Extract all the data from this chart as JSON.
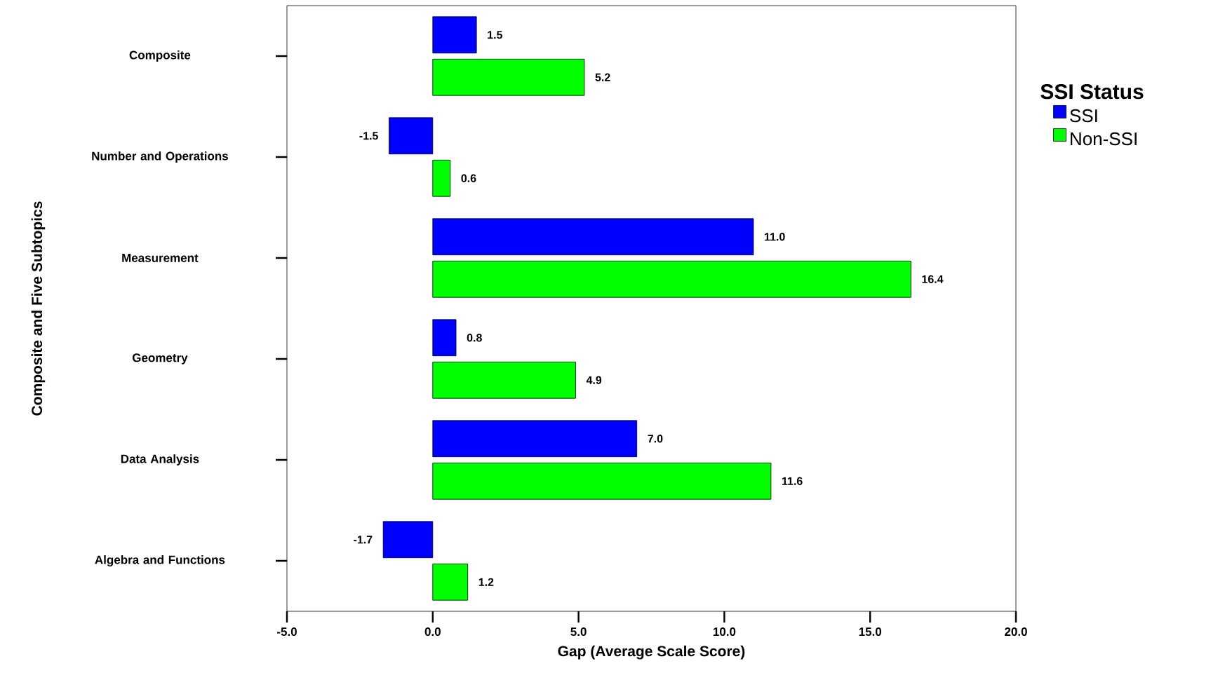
{
  "chart_data": {
    "type": "bar",
    "orientation": "horizontal",
    "xlabel": "Gap (Average Scale Score)",
    "ylabel": "Composite and Five Subtopics",
    "legend_title": "SSI Status",
    "legend": "right",
    "categories": [
      "Composite",
      "Number and Operations",
      "Measurement",
      "Geometry",
      "Data Analysis",
      "Algebra and Functions"
    ],
    "series": [
      {
        "name": "SSI",
        "color": "#0000ff",
        "values": [
          1.5,
          -1.5,
          11.0,
          0.8,
          7.0,
          -1.7
        ],
        "value_labels": [
          "1.5",
          "-1.5",
          "11.0",
          "0.8",
          "7.0",
          "-1.7"
        ]
      },
      {
        "name": "Non-SSI",
        "color": "#00ff00",
        "values": [
          5.2,
          0.6,
          16.4,
          4.9,
          11.6,
          1.2
        ],
        "value_labels": [
          "5.2",
          "0.6",
          "16.4",
          "4.9",
          "11.6",
          "1.2"
        ]
      }
    ],
    "xlim": [
      -5,
      20
    ],
    "xticks": [
      {
        "value": -5,
        "label": "-5.0"
      },
      {
        "value": 0,
        "label": "0.0"
      },
      {
        "value": 5,
        "label": "5.0"
      },
      {
        "value": 10,
        "label": "10.0"
      },
      {
        "value": 15,
        "label": "15.0"
      },
      {
        "value": 20,
        "label": "20.0"
      }
    ],
    "grid": false
  }
}
